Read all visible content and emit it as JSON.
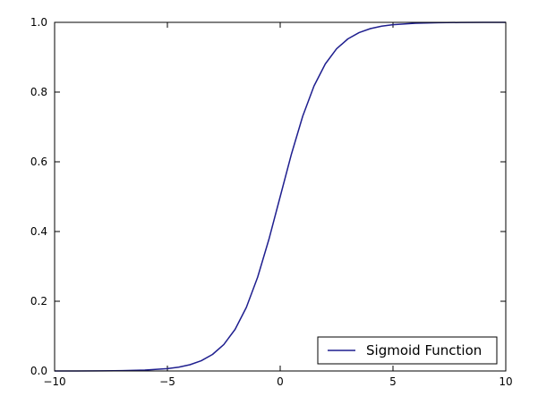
{
  "chart_data": {
    "type": "line",
    "title": "",
    "xlabel": "",
    "ylabel": "",
    "xlim": [
      -10,
      10
    ],
    "ylim": [
      0.0,
      1.0
    ],
    "x_ticks": [
      -10,
      -5,
      0,
      5,
      10
    ],
    "x_tick_labels": [
      "−10",
      "−5",
      "0",
      "5",
      "10"
    ],
    "y_ticks": [
      0.0,
      0.2,
      0.4,
      0.6,
      0.8,
      1.0
    ],
    "y_tick_labels": [
      "0.0",
      "0.2",
      "0.4",
      "0.6",
      "0.8",
      "1.0"
    ],
    "grid": false,
    "legend": {
      "placement": "lower-right"
    },
    "series": [
      {
        "name": "Sigmoid Function",
        "color": "#1f1f8f",
        "x": [
          -10,
          -9,
          -8,
          -7,
          -6,
          -5,
          -4.5,
          -4,
          -3.5,
          -3,
          -2.5,
          -2,
          -1.5,
          -1,
          -0.5,
          0,
          0.5,
          1,
          1.5,
          2,
          2.5,
          3,
          3.5,
          4,
          4.5,
          5,
          6,
          7,
          8,
          9,
          10
        ],
        "y": [
          5e-05,
          0.00012,
          0.00034,
          0.00091,
          0.00247,
          0.00669,
          0.01099,
          0.01799,
          0.02931,
          0.04743,
          0.07586,
          0.1192,
          0.18243,
          0.26894,
          0.37754,
          0.5,
          0.62246,
          0.73106,
          0.81757,
          0.8808,
          0.92414,
          0.95257,
          0.97069,
          0.98201,
          0.98901,
          0.99331,
          0.99753,
          0.99909,
          0.99966,
          0.99988,
          0.99995
        ]
      }
    ]
  }
}
